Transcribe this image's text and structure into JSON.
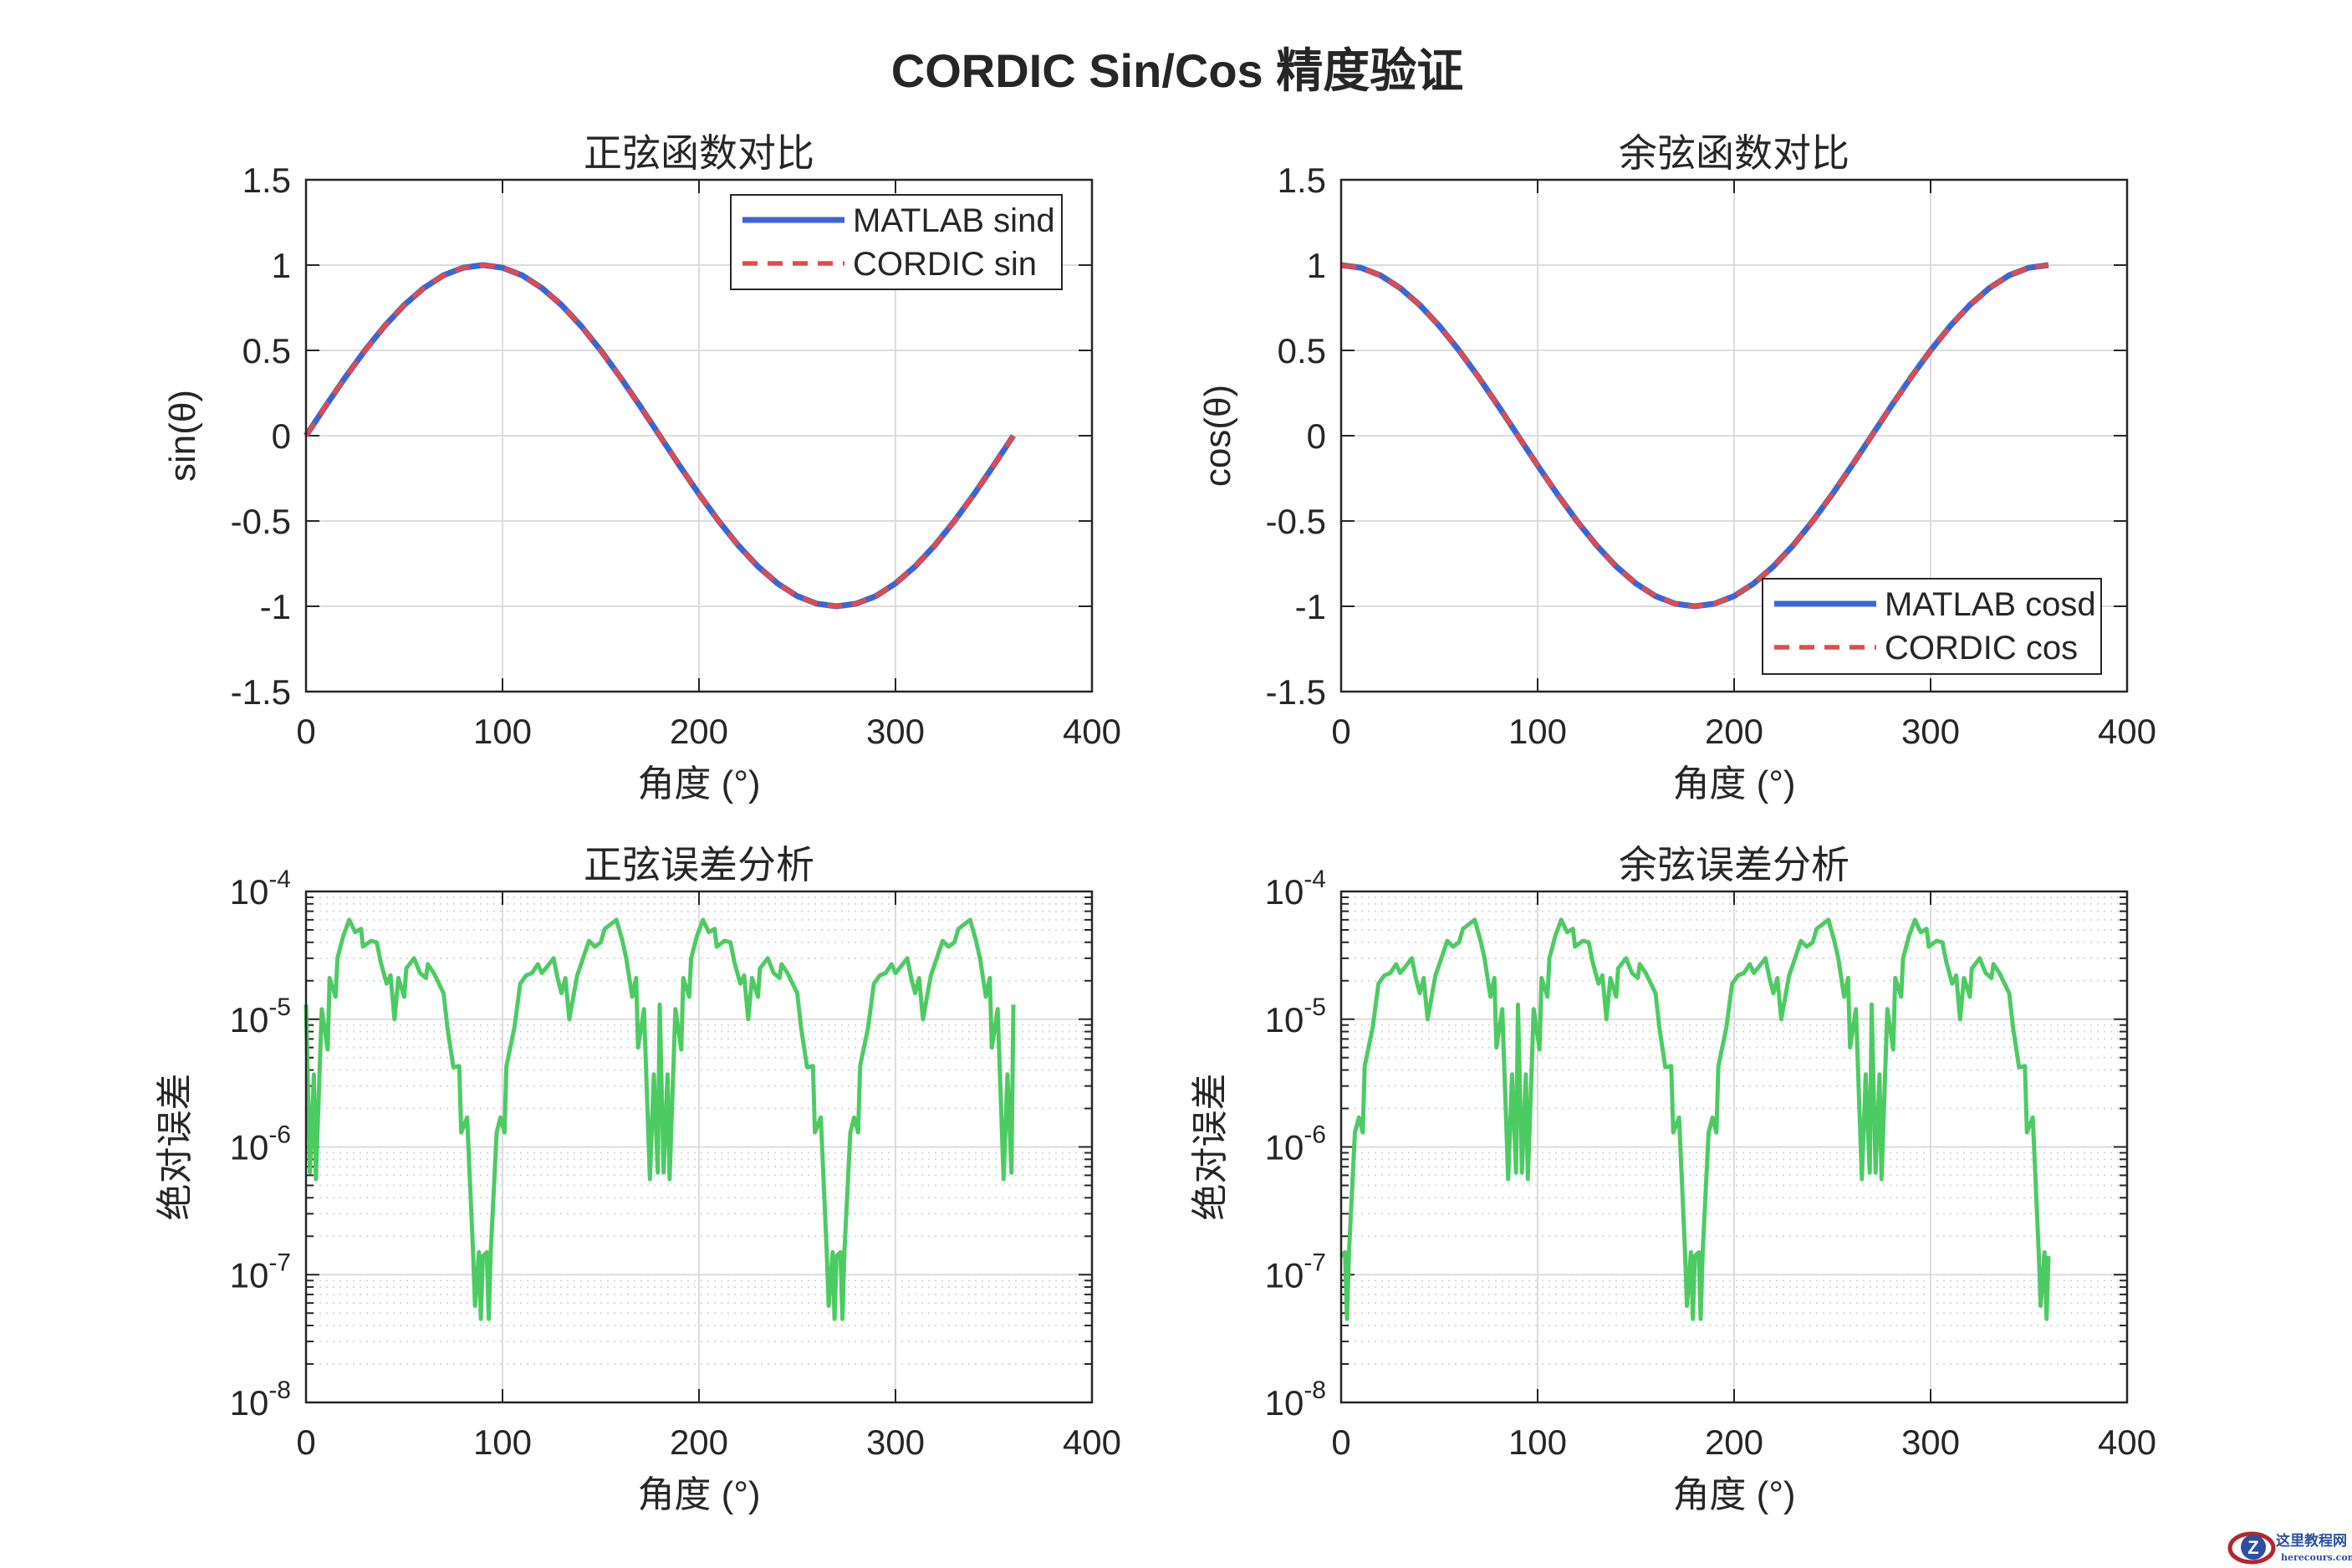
{
  "figure_title": "CORDIC Sin/Cos 精度验证",
  "watermark": {
    "text": "这里教程网",
    "subtext": "herecours.com"
  },
  "chart_data": [
    {
      "type": "line",
      "title": "正弦函数对比",
      "xlabel": "角度 (°)",
      "ylabel": "sin(θ)",
      "xlim": [
        0,
        400
      ],
      "ylim": [
        -1.5,
        1.5
      ],
      "yscale": "linear",
      "xticks": [
        0,
        100,
        200,
        300,
        400
      ],
      "xtick_labels": [
        "0",
        "100",
        "200",
        "300",
        "400"
      ],
      "yticks": [
        -1.5,
        -1,
        -0.5,
        0,
        0.5,
        1,
        1.5
      ],
      "ytick_labels": [
        "-1.5",
        "-1",
        "-0.5",
        "0",
        "0.5",
        "1",
        "1.5"
      ],
      "grid": true,
      "legend": "top-right",
      "x": [
        0,
        10,
        20,
        30,
        40,
        50,
        60,
        70,
        80,
        90,
        100,
        110,
        120,
        130,
        140,
        150,
        160,
        170,
        180,
        190,
        200,
        210,
        220,
        230,
        240,
        250,
        260,
        270,
        280,
        290,
        300,
        310,
        320,
        330,
        340,
        350,
        360
      ],
      "series": [
        {
          "name": "MATLAB sind",
          "color": "#3a66d4",
          "style": "solid",
          "values": [
            0,
            0.174,
            0.342,
            0.5,
            0.643,
            0.766,
            0.866,
            0.94,
            0.985,
            1,
            0.985,
            0.94,
            0.866,
            0.766,
            0.643,
            0.5,
            0.342,
            0.174,
            0,
            -0.174,
            -0.342,
            -0.5,
            -0.643,
            -0.766,
            -0.866,
            -0.94,
            -0.985,
            -1,
            -0.985,
            -0.94,
            -0.866,
            -0.766,
            -0.643,
            -0.5,
            -0.342,
            -0.174,
            0
          ]
        },
        {
          "name": "CORDIC sin",
          "color": "#e34a4a",
          "style": "dashed",
          "values": [
            0,
            0.174,
            0.342,
            0.5,
            0.643,
            0.766,
            0.866,
            0.94,
            0.985,
            1,
            0.985,
            0.94,
            0.866,
            0.766,
            0.643,
            0.5,
            0.342,
            0.174,
            0,
            -0.174,
            -0.342,
            -0.5,
            -0.643,
            -0.766,
            -0.866,
            -0.94,
            -0.985,
            -1,
            -0.985,
            -0.94,
            -0.866,
            -0.766,
            -0.643,
            -0.5,
            -0.342,
            -0.174,
            0
          ]
        }
      ]
    },
    {
      "type": "line",
      "title": "余弦函数对比",
      "xlabel": "角度 (°)",
      "ylabel": "cos(θ)",
      "xlim": [
        0,
        400
      ],
      "ylim": [
        -1.5,
        1.5
      ],
      "yscale": "linear",
      "xticks": [
        0,
        100,
        200,
        300,
        400
      ],
      "xtick_labels": [
        "0",
        "100",
        "200",
        "300",
        "400"
      ],
      "yticks": [
        -1.5,
        -1,
        -0.5,
        0,
        0.5,
        1,
        1.5
      ],
      "ytick_labels": [
        "-1.5",
        "-1",
        "-0.5",
        "0",
        "0.5",
        "1",
        "1.5"
      ],
      "grid": true,
      "legend": "bottom-right",
      "x": [
        0,
        10,
        20,
        30,
        40,
        50,
        60,
        70,
        80,
        90,
        100,
        110,
        120,
        130,
        140,
        150,
        160,
        170,
        180,
        190,
        200,
        210,
        220,
        230,
        240,
        250,
        260,
        270,
        280,
        290,
        300,
        310,
        320,
        330,
        340,
        350,
        360
      ],
      "series": [
        {
          "name": "MATLAB cosd",
          "color": "#3a66d4",
          "style": "solid",
          "values": [
            1,
            0.985,
            0.94,
            0.866,
            0.766,
            0.643,
            0.5,
            0.342,
            0.174,
            0,
            -0.174,
            -0.342,
            -0.5,
            -0.643,
            -0.766,
            -0.866,
            -0.94,
            -0.985,
            -1,
            -0.985,
            -0.94,
            -0.866,
            -0.766,
            -0.643,
            -0.5,
            -0.342,
            -0.174,
            0,
            0.174,
            0.342,
            0.5,
            0.643,
            0.766,
            0.866,
            0.94,
            0.985,
            1
          ]
        },
        {
          "name": "CORDIC cos",
          "color": "#e34a4a",
          "style": "dashed",
          "values": [
            1,
            0.985,
            0.94,
            0.866,
            0.766,
            0.643,
            0.5,
            0.342,
            0.174,
            0,
            -0.174,
            -0.342,
            -0.5,
            -0.643,
            -0.766,
            -0.866,
            -0.94,
            -0.985,
            -1,
            -0.985,
            -0.94,
            -0.866,
            -0.766,
            -0.643,
            -0.5,
            -0.342,
            -0.174,
            0,
            0.174,
            0.342,
            0.5,
            0.643,
            0.766,
            0.866,
            0.94,
            0.985,
            1
          ]
        }
      ]
    },
    {
      "type": "line",
      "title": "正弦误差分析",
      "xlabel": "角度 (°)",
      "ylabel": "绝对误差",
      "xlim": [
        0,
        400
      ],
      "ylim": [
        1e-08,
        0.0001
      ],
      "yscale": "log",
      "xticks": [
        0,
        100,
        200,
        300,
        400
      ],
      "xtick_labels": [
        "0",
        "100",
        "200",
        "300",
        "400"
      ],
      "yticks": [
        1e-08,
        1e-07,
        1e-06,
        1e-05,
        0.0001
      ],
      "ytick_labels": [
        {
          "base": "10",
          "exp": "-8"
        },
        {
          "base": "10",
          "exp": "-7"
        },
        {
          "base": "10",
          "exp": "-6"
        },
        {
          "base": "10",
          "exp": "-5"
        },
        {
          "base": "10",
          "exp": "-4"
        }
      ],
      "grid": true,
      "minor_grid": true,
      "series": [
        {
          "color": "#4dcb63",
          "style": "solid",
          "x": [
            0,
            2,
            4,
            5,
            8,
            11,
            12,
            15,
            16,
            19,
            22,
            25,
            28,
            29,
            33,
            36,
            38,
            41,
            43,
            45,
            47,
            50,
            51,
            55,
            58,
            61,
            62,
            65,
            70,
            72,
            75,
            78,
            79,
            82,
            85,
            86,
            88,
            89,
            90,
            92,
            93,
            94,
            97,
            99,
            101,
            102,
            106,
            109,
            112,
            115,
            118,
            120,
            122,
            126,
            128,
            130,
            132,
            134,
            138,
            140,
            144,
            147,
            150,
            152,
            158,
            161,
            163,
            166,
            168,
            169,
            172,
            175,
            177,
            179,
            180,
            182,
            184,
            185,
            188,
            191,
            192,
            195,
            196,
            199,
            202,
            205,
            208,
            209,
            213,
            216,
            218,
            221,
            223,
            225,
            227,
            230,
            231,
            235,
            238,
            241,
            242,
            245,
            250,
            252,
            255,
            258,
            259,
            262,
            265,
            266,
            268,
            269,
            270,
            272,
            273,
            274,
            277,
            279,
            281,
            282,
            286,
            289,
            292,
            295,
            298,
            300,
            302,
            306,
            308,
            310,
            312,
            314,
            318,
            320,
            324,
            327,
            330,
            332,
            338,
            341,
            343,
            346,
            348,
            349,
            352,
            355,
            357,
            359,
            360
          ],
          "values": [
            1.3e-05,
            6.3e-07,
            3.7e-06,
            5.6e-07,
            1.2e-05,
            5.8e-06,
            2.1e-05,
            1.5e-05,
            3e-05,
            4.5e-05,
            6e-05,
            4.8e-05,
            5.1e-05,
            3.7e-05,
            4.1e-05,
            4e-05,
            2.8e-05,
            1.9e-05,
            2.2e-05,
            1e-05,
            2.1e-05,
            1.5e-05,
            2.5e-05,
            3e-05,
            2.3e-05,
            2.1e-05,
            2.7e-05,
            2.3e-05,
            1.6e-05,
            8.5e-06,
            4.2e-06,
            4.3e-06,
            1.3e-06,
            1.7e-06,
            1.5e-07,
            5.7e-08,
            1.5e-07,
            4.5e-08,
            1.4e-07,
            1.5e-07,
            4.5e-08,
            1.5e-07,
            1.3e-06,
            1.7e-06,
            1.3e-06,
            4.3e-06,
            8.5e-06,
            1.9e-05,
            2.2e-05,
            2.3e-05,
            2.7e-05,
            2.3e-05,
            2.5e-05,
            3e-05,
            2.1e-05,
            1.6e-05,
            2.1e-05,
            1e-05,
            2.2e-05,
            2.7e-05,
            4.1e-05,
            3.7e-05,
            4e-05,
            5.1e-05,
            6e-05,
            4.1e-05,
            3e-05,
            1.5e-05,
            2.1e-05,
            6e-06,
            1.2e-05,
            5.6e-07,
            3.7e-06,
            6.3e-07,
            1.3e-05,
            6.3e-07,
            3.7e-06,
            5.6e-07,
            1.2e-05,
            5.8e-06,
            2.1e-05,
            1.5e-05,
            3e-05,
            4.5e-05,
            6e-05,
            4.8e-05,
            5.1e-05,
            3.7e-05,
            4.1e-05,
            4e-05,
            2.8e-05,
            1.9e-05,
            2.2e-05,
            1e-05,
            2.1e-05,
            1.5e-05,
            2.5e-05,
            3e-05,
            2.3e-05,
            2.1e-05,
            2.7e-05,
            2.3e-05,
            1.6e-05,
            8.5e-06,
            4.2e-06,
            4.3e-06,
            1.3e-06,
            1.7e-06,
            1.5e-07,
            5.7e-08,
            1.5e-07,
            4.5e-08,
            1.4e-07,
            1.5e-07,
            4.5e-08,
            1.5e-07,
            1.3e-06,
            1.7e-06,
            1.3e-06,
            4.3e-06,
            8.5e-06,
            1.9e-05,
            2.2e-05,
            2.3e-05,
            2.7e-05,
            2.3e-05,
            2.5e-05,
            3e-05,
            2.1e-05,
            1.6e-05,
            2.1e-05,
            1e-05,
            2.2e-05,
            2.7e-05,
            4.1e-05,
            3.7e-05,
            4e-05,
            5.1e-05,
            6e-05,
            4.1e-05,
            3e-05,
            1.5e-05,
            2.1e-05,
            6e-06,
            1.2e-05,
            5.6e-07,
            3.7e-06,
            6.3e-07,
            1.3e-05
          ]
        }
      ]
    },
    {
      "type": "line",
      "title": "余弦误差分析",
      "xlabel": "角度 (°)",
      "ylabel": "绝对误差",
      "xlim": [
        0,
        400
      ],
      "ylim": [
        1e-08,
        0.0001
      ],
      "yscale": "log",
      "xticks": [
        0,
        100,
        200,
        300,
        400
      ],
      "xtick_labels": [
        "0",
        "100",
        "200",
        "300",
        "400"
      ],
      "yticks": [
        1e-08,
        1e-07,
        1e-06,
        1e-05,
        0.0001
      ],
      "ytick_labels": [
        {
          "base": "10",
          "exp": "-8"
        },
        {
          "base": "10",
          "exp": "-7"
        },
        {
          "base": "10",
          "exp": "-6"
        },
        {
          "base": "10",
          "exp": "-5"
        },
        {
          "base": "10",
          "exp": "-4"
        }
      ],
      "grid": true,
      "minor_grid": true,
      "series": [
        {
          "color": "#4dcb63",
          "style": "solid",
          "x": [
            0,
            2,
            3,
            4,
            7,
            9,
            11,
            12,
            16,
            19,
            22,
            25,
            28,
            30,
            32,
            36,
            38,
            40,
            42,
            44,
            48,
            50,
            54,
            57,
            60,
            62,
            68,
            71,
            73,
            76,
            78,
            79,
            82,
            85,
            87,
            89,
            90,
            92,
            94,
            95,
            98,
            101,
            102,
            105,
            106,
            109,
            112,
            115,
            118,
            119,
            123,
            126,
            128,
            131,
            133,
            135,
            137,
            140,
            141,
            145,
            148,
            151,
            152,
            155,
            160,
            162,
            165,
            168,
            169,
            172,
            175,
            176,
            178,
            179,
            180,
            182,
            183,
            184,
            187,
            189,
            191,
            192,
            196,
            199,
            202,
            205,
            208,
            210,
            212,
            216,
            218,
            220,
            222,
            224,
            228,
            230,
            234,
            237,
            240,
            242,
            248,
            251,
            253,
            256,
            258,
            259,
            262,
            265,
            267,
            269,
            270,
            272,
            274,
            275,
            278,
            281,
            282,
            285,
            286,
            289,
            292,
            295,
            298,
            299,
            303,
            306,
            308,
            311,
            313,
            315,
            317,
            320,
            321,
            325,
            328,
            331,
            332,
            335,
            340,
            342,
            345,
            348,
            349,
            352,
            355,
            356,
            358,
            359,
            360
          ],
          "values": [
            1.4e-07,
            1.5e-07,
            4.5e-08,
            1.5e-07,
            1.3e-06,
            1.7e-06,
            1.3e-06,
            4.3e-06,
            8.5e-06,
            1.9e-05,
            2.2e-05,
            2.3e-05,
            2.7e-05,
            2.3e-05,
            2.5e-05,
            3e-05,
            2.1e-05,
            1.6e-05,
            2.1e-05,
            1e-05,
            2.2e-05,
            2.7e-05,
            4.1e-05,
            3.7e-05,
            4e-05,
            5.1e-05,
            6e-05,
            4.1e-05,
            3e-05,
            1.5e-05,
            2.1e-05,
            6e-06,
            1.2e-05,
            5.6e-07,
            3.7e-06,
            6.3e-07,
            1.3e-05,
            6.3e-07,
            3.7e-06,
            5.6e-07,
            1.2e-05,
            5.8e-06,
            2.1e-05,
            1.5e-05,
            3e-05,
            4.5e-05,
            6e-05,
            4.8e-05,
            5.1e-05,
            3.7e-05,
            4.1e-05,
            4e-05,
            2.8e-05,
            1.9e-05,
            2.2e-05,
            1e-05,
            2.1e-05,
            1.5e-05,
            2.5e-05,
            3e-05,
            2.3e-05,
            2.1e-05,
            2.7e-05,
            2.3e-05,
            1.6e-05,
            8.5e-06,
            4.2e-06,
            4.3e-06,
            1.3e-06,
            1.7e-06,
            1.5e-07,
            5.7e-08,
            1.5e-07,
            4.5e-08,
            1.4e-07,
            1.5e-07,
            4.5e-08,
            1.5e-07,
            1.3e-06,
            1.7e-06,
            1.3e-06,
            4.3e-06,
            8.5e-06,
            1.9e-05,
            2.2e-05,
            2.3e-05,
            2.7e-05,
            2.3e-05,
            2.5e-05,
            3e-05,
            2.1e-05,
            1.6e-05,
            2.1e-05,
            1e-05,
            2.2e-05,
            2.7e-05,
            4.1e-05,
            3.7e-05,
            4e-05,
            5.1e-05,
            6e-05,
            4.1e-05,
            3e-05,
            1.5e-05,
            2.1e-05,
            6e-06,
            1.2e-05,
            5.6e-07,
            3.7e-06,
            6.3e-07,
            1.3e-05,
            6.3e-07,
            3.7e-06,
            5.6e-07,
            1.2e-05,
            5.8e-06,
            2.1e-05,
            1.5e-05,
            3e-05,
            4.5e-05,
            6e-05,
            4.8e-05,
            5.1e-05,
            3.7e-05,
            4.1e-05,
            4e-05,
            2.8e-05,
            1.9e-05,
            2.2e-05,
            1e-05,
            2.1e-05,
            1.5e-05,
            2.5e-05,
            3e-05,
            2.3e-05,
            2.1e-05,
            2.7e-05,
            2.3e-05,
            1.6e-05,
            8.5e-06,
            4.2e-06,
            4.3e-06,
            1.3e-06,
            1.7e-06,
            1.5e-07,
            5.7e-08,
            1.5e-07,
            4.5e-08,
            1.4e-07
          ]
        }
      ]
    }
  ]
}
